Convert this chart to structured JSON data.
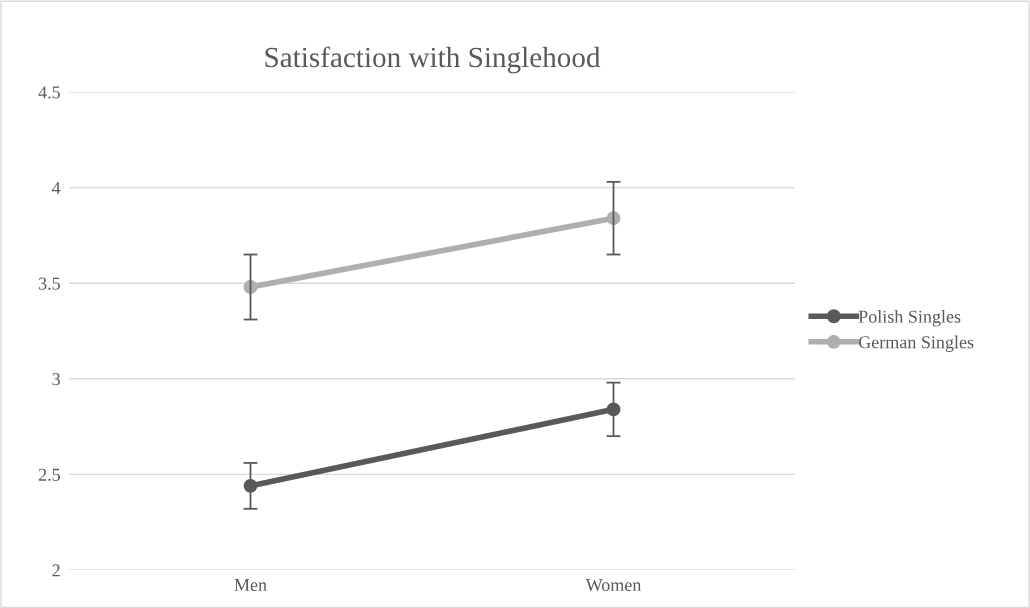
{
  "chart_data": {
    "type": "line",
    "title": "Satisfaction with Singlehood",
    "categories": [
      "Men",
      "Women"
    ],
    "series": [
      {
        "name": "Polish Singles",
        "color": "#595959",
        "values": [
          2.44,
          2.84
        ],
        "errors": [
          [
            2.32,
            2.56
          ],
          [
            2.7,
            2.98
          ]
        ]
      },
      {
        "name": "German Singles",
        "color": "#afafaf",
        "values": [
          3.48,
          3.84
        ],
        "errors": [
          [
            3.31,
            3.65
          ],
          [
            3.65,
            4.03
          ]
        ]
      }
    ],
    "ylim": [
      2,
      4.5
    ],
    "yticks": [
      2,
      2.5,
      3,
      3.5,
      4,
      4.5
    ],
    "grid": "y",
    "legend": "right",
    "marker": "circle",
    "line_style": "solid"
  }
}
